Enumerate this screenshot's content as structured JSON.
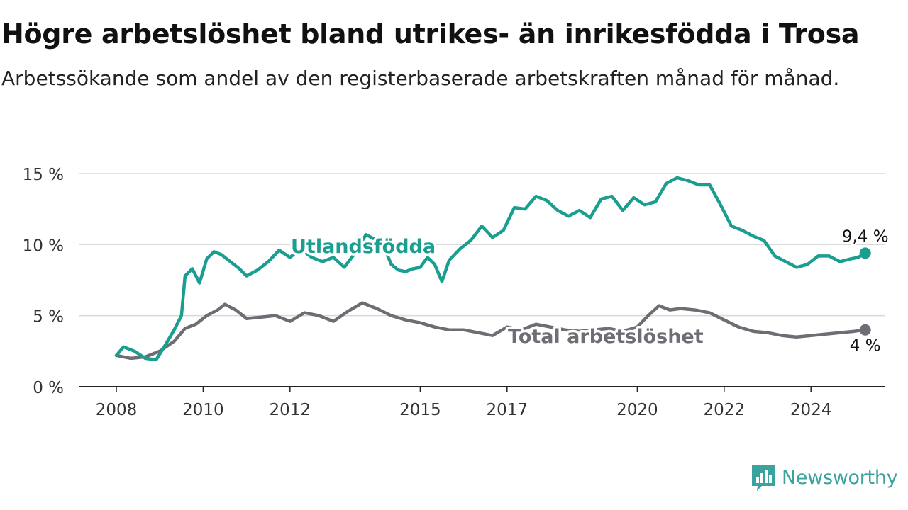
{
  "title": "Högre arbetslöshet bland utrikes- än inrikesfödda i Trosa",
  "subtitle": "Arbetssökande som andel av den registerbaserade arbetskraften månad för månad.",
  "brand": {
    "name": "Newsworthy",
    "icon": "newsworthy-logo-icon",
    "color": "#3aa39c"
  },
  "chart_data": {
    "type": "line",
    "title": "Högre arbetslöshet bland utrikes- än inrikesfödda i Trosa",
    "subtitle": "Arbetssökande som andel av den registerbaserade arbetskraften månad för månad.",
    "xlabel": "",
    "ylabel": "",
    "x_tick_labels": [
      "2008",
      "2010",
      "2012",
      "2015",
      "2017",
      "2020",
      "2022",
      "2024"
    ],
    "y_tick_labels": [
      "0 %",
      "5 %",
      "10 %",
      "15 %"
    ],
    "y_ticks": [
      0,
      5,
      10,
      15
    ],
    "ylim": [
      0,
      15
    ],
    "xlim": [
      "2008-01",
      "2025-05"
    ],
    "grid": "horizontal",
    "legend": "inline labels",
    "series": [
      {
        "name": "Utlandsfödda",
        "color": "#1a9e8f",
        "end_label": "9,4 %",
        "points": [
          [
            "2008-01",
            2.2
          ],
          [
            "2008-03",
            2.8
          ],
          [
            "2008-06",
            2.5
          ],
          [
            "2008-09",
            2.0
          ],
          [
            "2008-12",
            1.9
          ],
          [
            "2009-02",
            2.7
          ],
          [
            "2009-05",
            4.0
          ],
          [
            "2009-07",
            5.0
          ],
          [
            "2009-08",
            7.8
          ],
          [
            "2009-10",
            8.3
          ],
          [
            "2009-12",
            7.3
          ],
          [
            "2010-02",
            9.0
          ],
          [
            "2010-04",
            9.5
          ],
          [
            "2010-06",
            9.3
          ],
          [
            "2010-08",
            8.9
          ],
          [
            "2010-11",
            8.3
          ],
          [
            "2011-01",
            7.8
          ],
          [
            "2011-04",
            8.2
          ],
          [
            "2011-07",
            8.8
          ],
          [
            "2011-10",
            9.6
          ],
          [
            "2012-01",
            9.1
          ],
          [
            "2012-04",
            9.7
          ],
          [
            "2012-07",
            9.1
          ],
          [
            "2012-10",
            8.8
          ],
          [
            "2013-01",
            9.1
          ],
          [
            "2013-04",
            8.4
          ],
          [
            "2013-07",
            9.4
          ],
          [
            "2013-10",
            10.7
          ],
          [
            "2014-01",
            10.3
          ],
          [
            "2014-03",
            9.8
          ],
          [
            "2014-05",
            8.6
          ],
          [
            "2014-07",
            8.2
          ],
          [
            "2014-09",
            8.1
          ],
          [
            "2014-11",
            8.3
          ],
          [
            "2015-01",
            8.4
          ],
          [
            "2015-03",
            9.1
          ],
          [
            "2015-05",
            8.6
          ],
          [
            "2015-07",
            7.4
          ],
          [
            "2015-09",
            8.9
          ],
          [
            "2015-12",
            9.7
          ],
          [
            "2016-03",
            10.3
          ],
          [
            "2016-06",
            11.3
          ],
          [
            "2016-09",
            10.5
          ],
          [
            "2016-12",
            11.0
          ],
          [
            "2017-03",
            12.6
          ],
          [
            "2017-06",
            12.5
          ],
          [
            "2017-09",
            13.4
          ],
          [
            "2017-12",
            13.1
          ],
          [
            "2018-03",
            12.4
          ],
          [
            "2018-06",
            12.0
          ],
          [
            "2018-09",
            12.4
          ],
          [
            "2018-12",
            11.9
          ],
          [
            "2019-03",
            13.2
          ],
          [
            "2019-06",
            13.4
          ],
          [
            "2019-09",
            12.4
          ],
          [
            "2019-12",
            13.3
          ],
          [
            "2020-03",
            12.8
          ],
          [
            "2020-06",
            13.0
          ],
          [
            "2020-09",
            14.3
          ],
          [
            "2020-12",
            14.7
          ],
          [
            "2021-03",
            14.5
          ],
          [
            "2021-06",
            14.2
          ],
          [
            "2021-09",
            14.2
          ],
          [
            "2021-12",
            12.8
          ],
          [
            "2022-03",
            11.3
          ],
          [
            "2022-06",
            11.0
          ],
          [
            "2022-09",
            10.6
          ],
          [
            "2022-12",
            10.3
          ],
          [
            "2023-03",
            9.2
          ],
          [
            "2023-06",
            8.8
          ],
          [
            "2023-09",
            8.4
          ],
          [
            "2023-12",
            8.6
          ],
          [
            "2024-03",
            9.2
          ],
          [
            "2024-06",
            9.2
          ],
          [
            "2024-09",
            8.8
          ],
          [
            "2024-12",
            9.0
          ],
          [
            "2025-02",
            9.1
          ],
          [
            "2025-04",
            9.4
          ]
        ]
      },
      {
        "name": "Total arbetslöshet",
        "color": "#706c74",
        "end_label": "4 %",
        "points": [
          [
            "2008-01",
            2.2
          ],
          [
            "2008-05",
            2.0
          ],
          [
            "2008-09",
            2.1
          ],
          [
            "2009-01",
            2.5
          ],
          [
            "2009-05",
            3.2
          ],
          [
            "2009-08",
            4.1
          ],
          [
            "2009-11",
            4.4
          ],
          [
            "2010-02",
            5.0
          ],
          [
            "2010-05",
            5.4
          ],
          [
            "2010-07",
            5.8
          ],
          [
            "2010-10",
            5.4
          ],
          [
            "2011-01",
            4.8
          ],
          [
            "2011-05",
            4.9
          ],
          [
            "2011-09",
            5.0
          ],
          [
            "2012-01",
            4.6
          ],
          [
            "2012-05",
            5.2
          ],
          [
            "2012-09",
            5.0
          ],
          [
            "2013-01",
            4.6
          ],
          [
            "2013-05",
            5.3
          ],
          [
            "2013-09",
            5.9
          ],
          [
            "2014-01",
            5.5
          ],
          [
            "2014-05",
            5.0
          ],
          [
            "2014-09",
            4.7
          ],
          [
            "2015-01",
            4.5
          ],
          [
            "2015-05",
            4.2
          ],
          [
            "2015-09",
            4.0
          ],
          [
            "2016-01",
            4.0
          ],
          [
            "2016-05",
            3.8
          ],
          [
            "2016-09",
            3.6
          ],
          [
            "2017-01",
            4.2
          ],
          [
            "2017-05",
            4.0
          ],
          [
            "2017-09",
            4.4
          ],
          [
            "2018-01",
            4.2
          ],
          [
            "2018-05",
            4.0
          ],
          [
            "2018-09",
            3.9
          ],
          [
            "2019-01",
            4.0
          ],
          [
            "2019-05",
            4.1
          ],
          [
            "2019-09",
            3.9
          ],
          [
            "2020-01",
            4.2
          ],
          [
            "2020-04",
            5.0
          ],
          [
            "2020-07",
            5.7
          ],
          [
            "2020-10",
            5.4
          ],
          [
            "2021-01",
            5.5
          ],
          [
            "2021-05",
            5.4
          ],
          [
            "2021-09",
            5.2
          ],
          [
            "2022-01",
            4.7
          ],
          [
            "2022-05",
            4.2
          ],
          [
            "2022-09",
            3.9
          ],
          [
            "2023-01",
            3.8
          ],
          [
            "2023-05",
            3.6
          ],
          [
            "2023-09",
            3.5
          ],
          [
            "2024-01",
            3.6
          ],
          [
            "2024-05",
            3.7
          ],
          [
            "2024-09",
            3.8
          ],
          [
            "2025-01",
            3.9
          ],
          [
            "2025-04",
            4.0
          ]
        ]
      }
    ]
  }
}
